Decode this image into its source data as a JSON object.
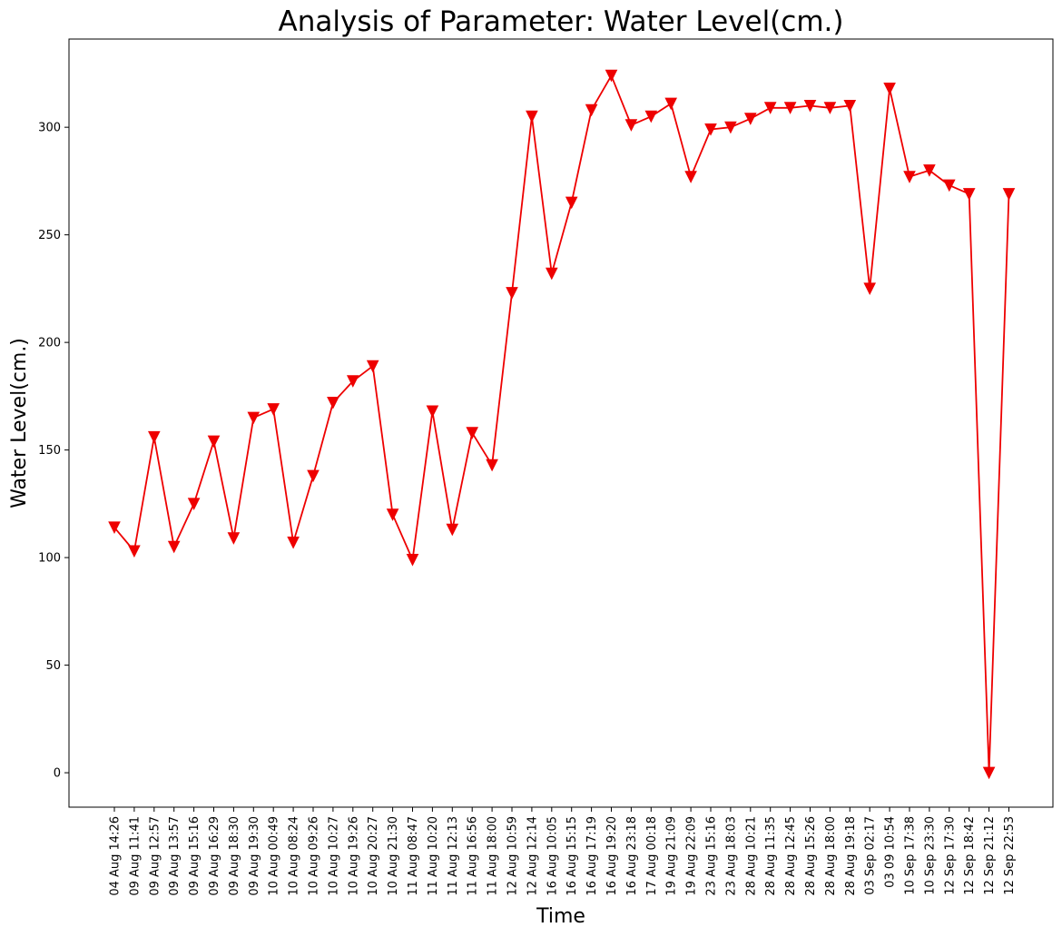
{
  "chart_data": {
    "type": "line",
    "title": "Analysis of Parameter: Water Level(cm.)",
    "xlabel": "Time",
    "ylabel": "Water Level(cm.)",
    "ylim": [
      -16,
      341
    ],
    "yticks": [
      0,
      50,
      100,
      150,
      200,
      250,
      300
    ],
    "grid": false,
    "marker": "triangle-down",
    "line_color": "#ee0000",
    "categories": [
      "04 Aug 14:26",
      "09 Aug 11:41",
      "09 Aug 12:57",
      "09 Aug 13:57",
      "09 Aug 15:16",
      "09 Aug 16:29",
      "09 Aug 18:30",
      "09 Aug 19:30",
      "10 Aug 00:49",
      "10 Aug 08:24",
      "10 Aug 09:26",
      "10 Aug 10:27",
      "10 Aug 19:26",
      "10 Aug 20:27",
      "10 Aug 21:30",
      "11 Aug 08:47",
      "11 Aug 10:20",
      "11 Aug 12:13",
      "11 Aug 16:56",
      "11 Aug 18:00",
      "12 Aug 10:59",
      "12 Aug 12:14",
      "16 Aug 10:05",
      "16 Aug 15:15",
      "16 Aug 17:19",
      "16 Aug 19:20",
      "16 Aug 23:18",
      "17 Aug 00:18",
      "19 Aug 21:09",
      "19 Aug 22:09",
      "23 Aug 15:16",
      "23 Aug 18:03",
      "28 Aug 10:21",
      "28 Aug 11:35",
      "28 Aug 12:45",
      "28 Aug 15:26",
      "28 Aug 18:00",
      "28 Aug 19:18",
      "03 Sep 02:17",
      "03 09 10:54",
      "10 Sep 17:38",
      "10 Sep 23:30",
      "12 Sep 17:30",
      "12 Sep 18:42",
      "12 Sep 21:12",
      "12 Sep 22:53"
    ],
    "series": [
      {
        "values": [
          114,
          103,
          156,
          105,
          125,
          154,
          109,
          165,
          169,
          107,
          138,
          172,
          182,
          189,
          120,
          99,
          168,
          113,
          158,
          143,
          223,
          305,
          232,
          265,
          308,
          324,
          301,
          305,
          311,
          277,
          299,
          300,
          304,
          309,
          309,
          310,
          309,
          310,
          225,
          318,
          277,
          280,
          273,
          269,
          0,
          269
        ]
      }
    ]
  }
}
